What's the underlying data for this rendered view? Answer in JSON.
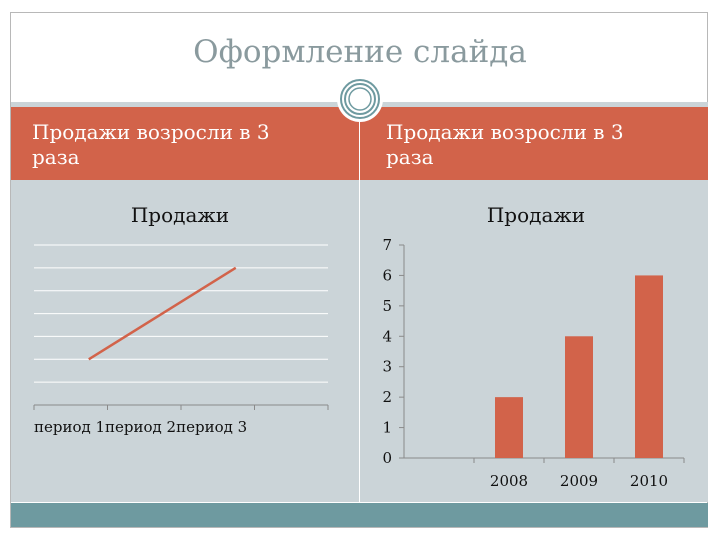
{
  "slide": {
    "title": "Оформление слайда",
    "left_heading": "Продажи возросли в 3 раза",
    "right_heading": "Продажи возросли в 3 раза",
    "colors": {
      "accent": "#d2634a",
      "body": "#cbd4d8",
      "footer": "#6e9aa0",
      "title": "#8a9a9e"
    }
  },
  "chart_data": [
    {
      "type": "line",
      "title": "Продажи",
      "categories": [
        "период 1",
        "период 2",
        "период 3"
      ],
      "series": [
        {
          "values": [
            2,
            4,
            6
          ],
          "color": "#d2634a"
        }
      ],
      "grid": true,
      "xlabel": "",
      "ylabel": ""
    },
    {
      "type": "bar",
      "title": "Продажи",
      "categories": [
        "2008",
        "2009",
        "2010"
      ],
      "values": [
        2,
        4,
        6
      ],
      "ylim": [
        0,
        7
      ],
      "yticks": [
        0,
        1,
        2,
        3,
        4,
        5,
        6,
        7
      ],
      "grid": false,
      "color": "#d2634a",
      "xlabel": "",
      "ylabel": ""
    }
  ]
}
